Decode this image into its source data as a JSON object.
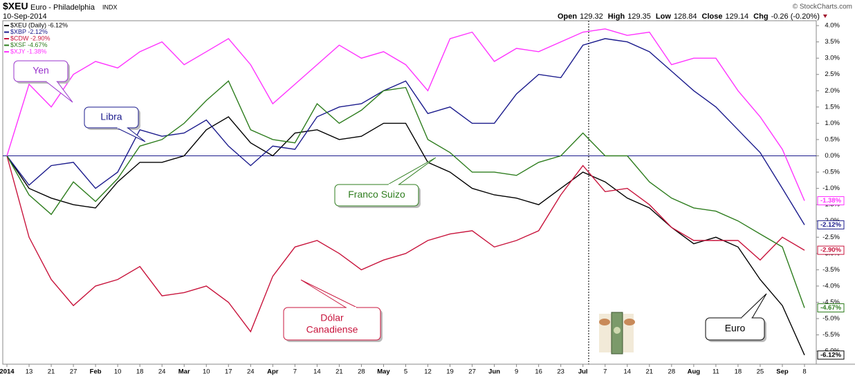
{
  "chart_data": {
    "type": "line",
    "symbol": "$XEU",
    "title": "Euro - Philadelphia",
    "exchange": "INDX",
    "date": "10-Sep-2014",
    "quote": [
      [
        "Open",
        "129.32"
      ],
      [
        "High",
        "129.35"
      ],
      [
        "Low",
        "128.84"
      ],
      [
        "Close",
        "129.14"
      ],
      [
        "Chg",
        "-0.26 (-0.20%)"
      ]
    ],
    "credit": "© StockCharts.com",
    "categories": [
      "2014",
      "13",
      "21",
      "27",
      "Feb",
      "10",
      "18",
      "24",
      "Mar",
      "10",
      "17",
      "24",
      "Apr",
      "7",
      "14",
      "21",
      "28",
      "May",
      "5",
      "12",
      "19",
      "27",
      "Jun",
      "9",
      "16",
      "23",
      "Jul",
      "7",
      "14",
      "21",
      "28",
      "Aug",
      "11",
      "18",
      "25",
      "Sep",
      "8"
    ],
    "ylim": [
      -6.4,
      4.15
    ],
    "yticks": [
      {
        "value": 4.0,
        "label": "4.0%"
      },
      {
        "value": 3.5,
        "label": "3.5%"
      },
      {
        "value": 3.0,
        "label": "3.0%"
      },
      {
        "value": 2.5,
        "label": "2.5%"
      },
      {
        "value": 2.0,
        "label": "2.0%"
      },
      {
        "value": 1.5,
        "label": "1.5%"
      },
      {
        "value": 1.0,
        "label": "1.0%"
      },
      {
        "value": 0.5,
        "label": "0.5%"
      },
      {
        "value": 0.0,
        "label": "0.0%"
      },
      {
        "value": -0.5,
        "label": "-0.5%"
      },
      {
        "value": -1.0,
        "label": "-1.0%"
      },
      {
        "value": -1.5,
        "label": "-1.5%"
      },
      {
        "value": -2.0,
        "label": "-2.0%"
      },
      {
        "value": -2.5,
        "label": "-2.5%"
      },
      {
        "value": -3.0,
        "label": "-3.0%"
      },
      {
        "value": -3.5,
        "label": "-3.5%"
      },
      {
        "value": -4.0,
        "label": "-4.0%"
      },
      {
        "value": -4.5,
        "label": "-4.5%"
      },
      {
        "value": -5.0,
        "label": "-5.0%"
      },
      {
        "value": -5.5,
        "label": "-5.5%"
      },
      {
        "value": -6.0,
        "label": "-6.0%"
      }
    ],
    "series": [
      {
        "name": "$XEU (Daily) -6.12%",
        "color": "#000000",
        "values": [
          0,
          -1.0,
          -1.3,
          -1.5,
          -1.6,
          -0.8,
          -0.2,
          -0.2,
          0.0,
          0.8,
          1.2,
          0.4,
          0.0,
          0.7,
          0.8,
          0.5,
          0.6,
          1.0,
          1.0,
          -0.2,
          -0.5,
          -1.0,
          -1.2,
          -1.3,
          -1.5,
          -1.0,
          -0.5,
          -0.8,
          -1.3,
          -1.6,
          -2.2,
          -2.7,
          -2.5,
          -2.8,
          -3.8,
          -4.6,
          -6.12
        ],
        "value_labels": [
          null,
          null,
          null,
          null,
          null,
          null,
          null,
          null,
          null,
          null,
          null,
          null,
          null,
          null,
          null,
          null,
          null,
          null,
          null,
          null,
          null,
          null,
          null,
          null,
          null,
          null,
          null,
          null,
          null,
          null,
          null,
          null,
          null,
          null,
          null,
          null,
          "-6.12%"
        ]
      },
      {
        "name": "$XBP -2.12%",
        "color": "#1a1a8c",
        "values": [
          0,
          -0.9,
          -0.3,
          -0.2,
          -1.0,
          -0.5,
          0.8,
          0.6,
          0.7,
          1.1,
          0.3,
          -0.3,
          0.3,
          0.2,
          1.2,
          1.5,
          1.6,
          2.0,
          2.3,
          1.3,
          1.5,
          1.0,
          1.0,
          1.9,
          2.5,
          2.4,
          3.4,
          3.6,
          3.5,
          3.2,
          2.6,
          2.0,
          1.5,
          0.8,
          0.1,
          -1.0,
          -2.12
        ],
        "value_labels": [
          null,
          null,
          null,
          null,
          null,
          null,
          null,
          null,
          null,
          null,
          null,
          null,
          null,
          null,
          null,
          null,
          null,
          null,
          null,
          null,
          null,
          null,
          null,
          null,
          null,
          null,
          null,
          null,
          null,
          null,
          null,
          null,
          null,
          null,
          null,
          null,
          "-2.12%"
        ]
      },
      {
        "name": "$CDW -2.90%",
        "color": "#c8143c",
        "values": [
          0,
          -2.5,
          -3.8,
          -4.6,
          -4.0,
          -3.8,
          -3.4,
          -4.3,
          -4.2,
          -4.0,
          -4.5,
          -5.4,
          -3.7,
          -2.8,
          -2.6,
          -3.0,
          -3.5,
          -3.2,
          -3.0,
          -2.6,
          -2.4,
          -2.3,
          -2.8,
          -2.6,
          -2.3,
          -1.2,
          -0.3,
          -1.1,
          -1.0,
          -1.5,
          -2.2,
          -2.6,
          -2.6,
          -2.6,
          -3.2,
          -2.5,
          -2.9
        ],
        "value_labels": [
          null,
          null,
          null,
          null,
          null,
          null,
          null,
          null,
          null,
          null,
          null,
          null,
          null,
          null,
          null,
          null,
          null,
          null,
          null,
          null,
          null,
          null,
          null,
          null,
          null,
          null,
          null,
          null,
          null,
          null,
          null,
          null,
          null,
          null,
          null,
          null,
          "-2.90%"
        ]
      },
      {
        "name": "$XSF -4.67%",
        "color": "#2e7d1e",
        "values": [
          0,
          -1.2,
          -1.8,
          -0.8,
          -1.4,
          -0.7,
          0.3,
          0.5,
          1.0,
          1.7,
          2.3,
          0.8,
          0.5,
          0.4,
          1.6,
          1.0,
          1.4,
          2.0,
          2.1,
          0.5,
          0.1,
          -0.5,
          -0.5,
          -0.6,
          -0.2,
          0.0,
          0.7,
          0.0,
          0.0,
          -0.8,
          -1.3,
          -1.6,
          -1.7,
          -2.0,
          -2.4,
          -2.8,
          -4.67
        ],
        "value_labels": [
          null,
          null,
          null,
          null,
          null,
          null,
          null,
          null,
          null,
          null,
          null,
          null,
          null,
          null,
          null,
          null,
          null,
          null,
          null,
          null,
          null,
          null,
          null,
          null,
          null,
          null,
          null,
          null,
          null,
          null,
          null,
          null,
          null,
          null,
          null,
          null,
          "-4.67%"
        ]
      },
      {
        "name": "$XJY -1.38%",
        "color": "#ff33ff",
        "values": [
          0,
          2.2,
          1.5,
          2.5,
          2.9,
          2.7,
          3.2,
          3.5,
          2.8,
          3.2,
          3.6,
          2.8,
          1.6,
          2.2,
          2.8,
          3.4,
          3.0,
          3.2,
          2.8,
          2.0,
          3.6,
          3.8,
          2.9,
          3.3,
          3.2,
          3.5,
          3.8,
          3.9,
          3.7,
          3.8,
          2.8,
          3.0,
          3.0,
          2.0,
          1.2,
          0.2,
          -1.38
        ],
        "value_labels": [
          null,
          null,
          null,
          null,
          null,
          null,
          null,
          null,
          null,
          null,
          null,
          null,
          null,
          null,
          null,
          null,
          null,
          null,
          null,
          null,
          null,
          null,
          null,
          null,
          null,
          null,
          null,
          null,
          null,
          null,
          null,
          null,
          null,
          null,
          null,
          null,
          "-1.38%"
        ]
      }
    ],
    "annotations": [
      "Yen",
      "Libra",
      "Franco Suizo",
      "Dólar Canadiense",
      "Euro"
    ]
  }
}
